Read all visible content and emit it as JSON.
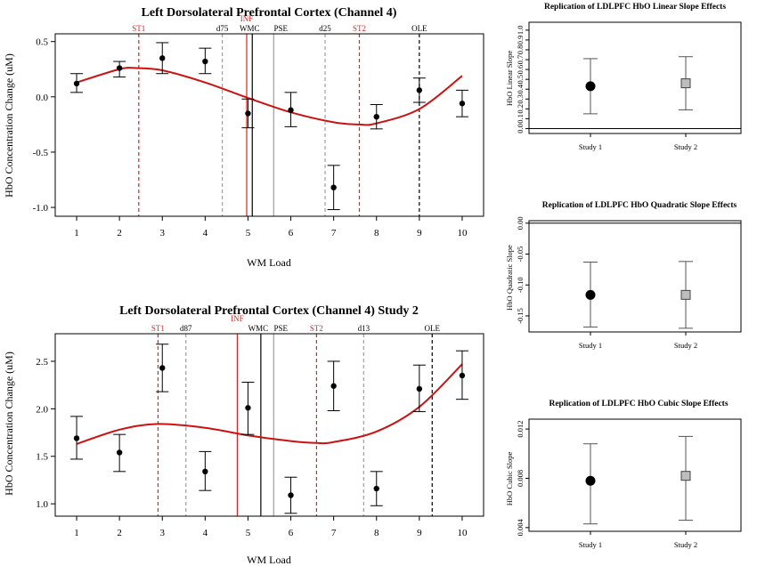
{
  "colors": {
    "fit": "#cc1111",
    "red_line": "#dd2222",
    "black": "#000000",
    "grey": "#9e9e9e",
    "study2_fill": "#bdbdbd"
  },
  "chart_data": [
    {
      "id": "p1",
      "type": "scatter",
      "title": "Left Dorsolateral Prefrontal Cortex (Channel 4)",
      "xlabel": "WM Load",
      "ylabel": "HbO Concentration Change (uM)",
      "xlim": [
        0.5,
        10.5
      ],
      "ylim": [
        -1.08,
        0.57
      ],
      "xticks": [
        1,
        2,
        3,
        4,
        5,
        6,
        7,
        8,
        9,
        10
      ],
      "yticks": [
        -1.0,
        -0.5,
        0.0,
        0.5
      ],
      "ytick_labels": [
        "-1.0",
        "-0.5",
        "0.0",
        "0.5"
      ],
      "points": [
        {
          "x": 1,
          "y": 0.12,
          "lo": 0.04,
          "hi": 0.21
        },
        {
          "x": 2,
          "y": 0.26,
          "lo": 0.18,
          "hi": 0.32
        },
        {
          "x": 3,
          "y": 0.35,
          "lo": 0.21,
          "hi": 0.49
        },
        {
          "x": 4,
          "y": 0.32,
          "lo": 0.21,
          "hi": 0.44
        },
        {
          "x": 5,
          "y": -0.15,
          "lo": -0.28,
          "hi": -0.02
        },
        {
          "x": 6,
          "y": -0.12,
          "lo": -0.27,
          "hi": 0.04
        },
        {
          "x": 7,
          "y": -0.82,
          "lo": -1.02,
          "hi": -0.62
        },
        {
          "x": 8,
          "y": -0.18,
          "lo": -0.29,
          "hi": -0.07
        },
        {
          "x": 9,
          "y": 0.06,
          "lo": -0.05,
          "hi": 0.17
        },
        {
          "x": 10,
          "y": -0.06,
          "lo": -0.18,
          "hi": 0.06
        }
      ],
      "fit_curve": {
        "x": [
          1,
          2,
          2.4,
          3,
          4,
          5,
          6,
          7,
          7.6,
          8,
          9,
          10
        ],
        "y": [
          0.13,
          0.25,
          0.26,
          0.24,
          0.13,
          -0.01,
          -0.14,
          -0.23,
          -0.25,
          -0.24,
          -0.11,
          0.19
        ]
      },
      "vlines": [
        {
          "x": 2.45,
          "label": "ST1",
          "style": "red-dashed"
        },
        {
          "x": 4.4,
          "label": "d75",
          "style": "grey-dashed"
        },
        {
          "x": 4.97,
          "label": "INF",
          "style": "red-solid"
        },
        {
          "x": 5.1,
          "label": "WMC",
          "style": "black-solid"
        },
        {
          "x": 5.6,
          "label": "PSE",
          "style": "grey-solid"
        },
        {
          "x": 6.8,
          "label": "d25",
          "style": "grey-dashed"
        },
        {
          "x": 7.6,
          "label": "ST2",
          "style": "red-dashed"
        },
        {
          "x": 9.0,
          "label": "OLE",
          "style": "black-dashed"
        }
      ]
    },
    {
      "id": "p2",
      "type": "scatter",
      "title": "Left Dorsolateral Prefrontal Cortex (Channel 4) Study 2",
      "xlabel": "WM Load",
      "ylabel": "HbO Concentration Change (uM)",
      "xlim": [
        0.5,
        10.5
      ],
      "ylim": [
        0.87,
        2.79
      ],
      "xticks": [
        1,
        2,
        3,
        4,
        5,
        6,
        7,
        8,
        9,
        10
      ],
      "yticks": [
        1.0,
        1.5,
        2.0,
        2.5
      ],
      "ytick_labels": [
        "1.0",
        "1.5",
        "2.0",
        "2.5"
      ],
      "points": [
        {
          "x": 1,
          "y": 1.69,
          "lo": 1.47,
          "hi": 1.92
        },
        {
          "x": 2,
          "y": 1.54,
          "lo": 1.34,
          "hi": 1.73
        },
        {
          "x": 3,
          "y": 2.43,
          "lo": 2.18,
          "hi": 2.68
        },
        {
          "x": 4,
          "y": 1.34,
          "lo": 1.14,
          "hi": 1.55
        },
        {
          "x": 5,
          "y": 2.01,
          "lo": 1.73,
          "hi": 2.28
        },
        {
          "x": 6,
          "y": 1.09,
          "lo": 0.9,
          "hi": 1.28
        },
        {
          "x": 7,
          "y": 2.24,
          "lo": 1.98,
          "hi": 2.5
        },
        {
          "x": 8,
          "y": 1.16,
          "lo": 0.98,
          "hi": 1.34
        },
        {
          "x": 9,
          "y": 2.21,
          "lo": 1.97,
          "hi": 2.46
        },
        {
          "x": 10,
          "y": 2.35,
          "lo": 2.1,
          "hi": 2.61
        }
      ],
      "fit_curve": {
        "x": [
          1,
          2,
          2.9,
          4,
          5,
          6,
          6.6,
          7,
          8,
          9,
          10
        ],
        "y": [
          1.63,
          1.78,
          1.84,
          1.8,
          1.72,
          1.66,
          1.64,
          1.65,
          1.76,
          2.02,
          2.47
        ]
      },
      "vlines": [
        {
          "x": 2.9,
          "label": "ST1",
          "style": "red-dashed"
        },
        {
          "x": 3.55,
          "label": "d87",
          "style": "grey-dashed"
        },
        {
          "x": 4.75,
          "label": "INF",
          "style": "red-solid"
        },
        {
          "x": 5.3,
          "label": "WMC",
          "style": "black-solid"
        },
        {
          "x": 5.6,
          "label": "PSE",
          "style": "grey-solid"
        },
        {
          "x": 6.6,
          "label": "ST2",
          "style": "red-dashed"
        },
        {
          "x": 7.7,
          "label": "d13",
          "style": "grey-dashed"
        },
        {
          "x": 9.3,
          "label": "OLE",
          "style": "black-dashed"
        }
      ]
    },
    {
      "id": "r1",
      "type": "scatter",
      "title": "Replication of LDLPFC HbO Linear Slope Effects",
      "ylabel": "HbO Linear Slope",
      "categories": [
        "Study 1",
        "Study 2"
      ],
      "ylim": [
        -0.05,
        1.08
      ],
      "yticks": [
        0.0,
        0.1,
        0.2,
        0.3,
        0.4,
        0.5,
        0.6,
        0.7,
        0.8,
        0.9,
        1.0
      ],
      "ytick_labels": [
        "0.0",
        "0.1",
        "0.2",
        "0.3",
        "0.4",
        "0.5",
        "0.6",
        "0.7",
        "0.8",
        "0.9",
        "1.0"
      ],
      "refline": 0.0,
      "series": [
        {
          "name": "Study 1",
          "value": 0.43,
          "lo": 0.15,
          "hi": 0.71,
          "marker": "circle"
        },
        {
          "name": "Study 2",
          "value": 0.46,
          "lo": 0.19,
          "hi": 0.73,
          "marker": "square"
        }
      ]
    },
    {
      "id": "r2",
      "type": "scatter",
      "title": "Replication of LDLPFC HbO Quadratic Slope Effects",
      "ylabel": "HbO Quadratic Slope",
      "categories": [
        "Study 1",
        "Study 2"
      ],
      "ylim": [
        -0.176,
        0.004
      ],
      "yticks": [
        0.0,
        -0.05,
        -0.1,
        -0.15
      ],
      "ytick_labels": [
        "0.00",
        "-0.05",
        "-0.10",
        "-0.15"
      ],
      "refline": 0.0,
      "series": [
        {
          "name": "Study 1",
          "value": -0.116,
          "lo": -0.168,
          "hi": -0.063,
          "marker": "circle"
        },
        {
          "name": "Study 2",
          "value": -0.116,
          "lo": -0.17,
          "hi": -0.062,
          "marker": "square"
        }
      ]
    },
    {
      "id": "r3",
      "type": "scatter",
      "title": "Replication of LDLPFC HbO Cubic Slope Effects",
      "ylabel": "HbO Cubic Slope",
      "categories": [
        "Study 1",
        "Study 2"
      ],
      "ylim": [
        0.0037,
        0.0128
      ],
      "yticks": [
        0.004,
        0.008,
        0.012
      ],
      "ytick_labels": [
        "0.004",
        "0.008",
        "0.012"
      ],
      "series": [
        {
          "name": "Study 1",
          "value": 0.0078,
          "lo": 0.0043,
          "hi": 0.0108,
          "marker": "circle"
        },
        {
          "name": "Study 2",
          "value": 0.0082,
          "lo": 0.0046,
          "hi": 0.0114,
          "marker": "square"
        }
      ]
    }
  ]
}
